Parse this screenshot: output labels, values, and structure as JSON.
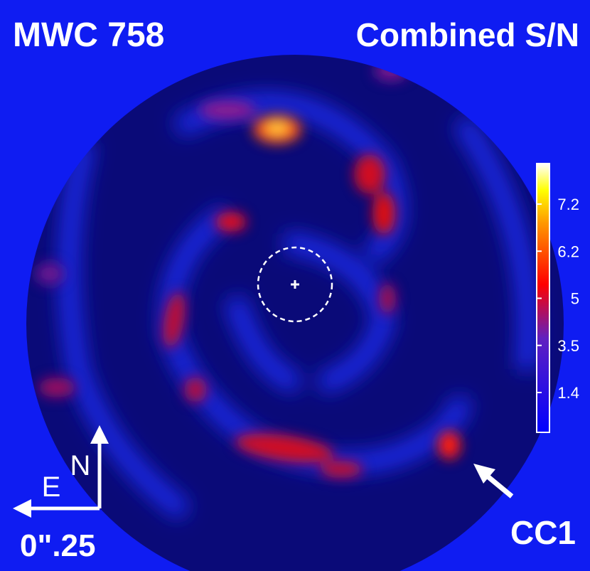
{
  "header": {
    "target": "MWC 758",
    "map": "Combined S/N"
  },
  "colorbar": {
    "ticks": [
      1.4,
      3.5,
      5,
      6.2,
      7.2
    ]
  },
  "compass": {
    "north": "N",
    "east": "E",
    "scale": "0\".25"
  },
  "annotations": {
    "companion": "CC1"
  }
}
